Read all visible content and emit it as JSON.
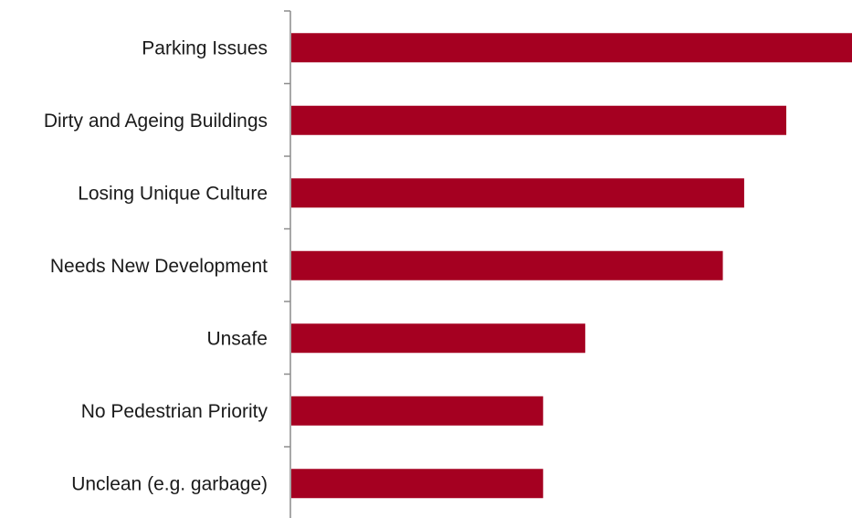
{
  "chart_data": {
    "type": "bar",
    "orientation": "horizontal",
    "categories": [
      "Parking Issues",
      "Dirty and Ageing Buildings",
      "Losing Unique Culture",
      "Needs New Development",
      "Unsafe",
      "No Pedestrian Priority",
      "Unclean (e.g. garbage)"
    ],
    "values": [
      100,
      88.3,
      80.8,
      77,
      52.5,
      45,
      45
    ],
    "title": "",
    "xlabel": "",
    "ylabel": "",
    "xlim": [
      0,
      100
    ],
    "grid": false,
    "legend": "none",
    "bar_color": "#a50021",
    "axis_color": "#8c8c8c"
  }
}
